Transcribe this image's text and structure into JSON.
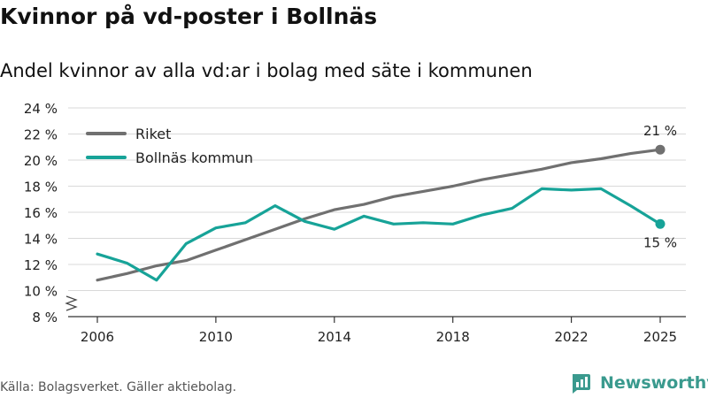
{
  "title": "Kvinnor på vd-poster i Bollnäs",
  "subtitle": "Andel kvinnor av alla vd:ar i bolag med säte i kommunen",
  "footer": "Källa: Bolagsverket. Gäller aktiebolag.",
  "brand": {
    "name": "Newsworthy",
    "icon": "chart-logo-icon",
    "color": "#3a9a8e"
  },
  "chart_data": {
    "type": "line",
    "title": "Kvinnor på vd-poster i Bollnäs",
    "xlabel": "",
    "ylabel": "",
    "xlim": [
      2005,
      2026
    ],
    "ylim": [
      8,
      24
    ],
    "x_ticks": [
      2006,
      2010,
      2014,
      2018,
      2022,
      2025
    ],
    "y_ticks": [
      8,
      10,
      12,
      14,
      16,
      18,
      20,
      22,
      24
    ],
    "y_tick_labels": [
      "8 %",
      "10 %",
      "12 %",
      "14 %",
      "16 %",
      "18 %",
      "20 %",
      "22 %",
      "24 %"
    ],
    "grid": true,
    "axis_break": true,
    "legend_position": "top-left",
    "series": [
      {
        "name": "Riket",
        "color": "#707070",
        "x": [
          2006,
          2007,
          2008,
          2009,
          2010,
          2011,
          2012,
          2013,
          2014,
          2015,
          2016,
          2017,
          2018,
          2019,
          2020,
          2021,
          2022,
          2023,
          2024,
          2025
        ],
        "values": [
          10.8,
          11.3,
          11.9,
          12.3,
          13.1,
          13.9,
          14.7,
          15.5,
          16.2,
          16.6,
          17.2,
          17.6,
          18.0,
          18.5,
          18.9,
          19.3,
          19.8,
          20.1,
          20.5,
          20.8
        ],
        "end_label": "21 %"
      },
      {
        "name": "Bollnäs kommun",
        "color": "#17a398",
        "x": [
          2006,
          2007,
          2008,
          2009,
          2010,
          2011,
          2012,
          2013,
          2014,
          2015,
          2016,
          2017,
          2018,
          2019,
          2020,
          2021,
          2022,
          2023,
          2024,
          2025
        ],
        "values": [
          12.8,
          12.1,
          10.8,
          13.6,
          14.8,
          15.2,
          16.5,
          15.3,
          14.7,
          15.7,
          15.1,
          15.2,
          15.1,
          15.8,
          16.3,
          17.8,
          17.7,
          17.8,
          16.5,
          15.1
        ],
        "end_label": "15 %"
      }
    ]
  }
}
